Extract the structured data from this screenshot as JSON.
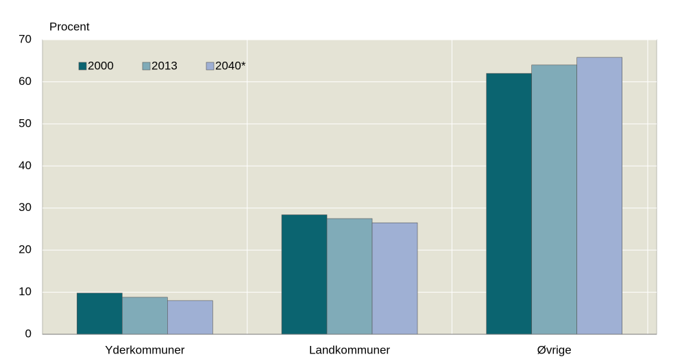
{
  "chart_data": {
    "type": "bar",
    "y_label": "Procent",
    "categories": [
      "Yderkommuner",
      "Landkommuner",
      "Øvrige"
    ],
    "series": [
      {
        "name": "2000",
        "color": "#0b6470",
        "values": [
          9.8,
          28.4,
          62.0
        ]
      },
      {
        "name": "2013",
        "color": "#80abb8",
        "values": [
          8.8,
          27.5,
          64.0
        ]
      },
      {
        "name": "2040*",
        "color": "#9fb0d4",
        "values": [
          8.0,
          26.5,
          65.8
        ]
      }
    ],
    "ylim": [
      0,
      70
    ],
    "yticks": [
      0,
      10,
      20,
      30,
      40,
      50,
      60,
      70
    ],
    "grid": true,
    "legend": "top-left"
  }
}
